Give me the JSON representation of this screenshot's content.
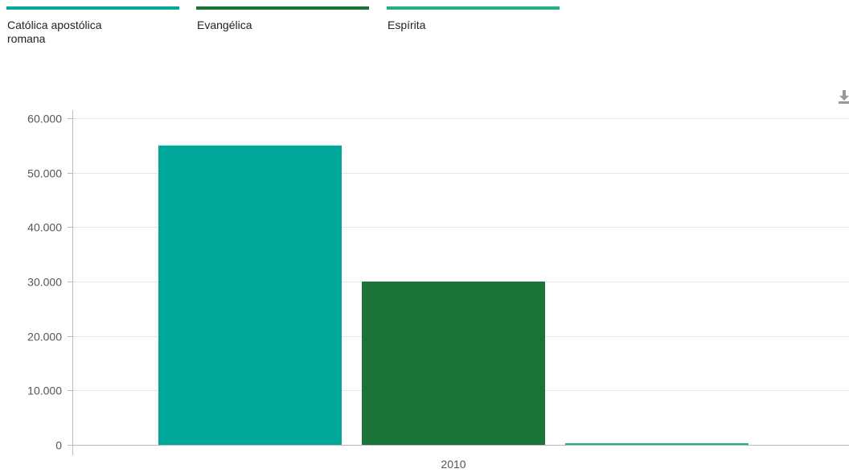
{
  "colors": {
    "catolica": "#00A89C",
    "evangelica": "#1A7438",
    "espirita": "#25B07A",
    "gridline": "#E6E6E6",
    "axis": "#BBBBBB",
    "download_icon": "#999999"
  },
  "toolbar": {
    "download_icon": "download-icon"
  },
  "chart_data": {
    "type": "bar",
    "title": "",
    "xlabel": "",
    "ylabel": "",
    "categories": [
      "2010"
    ],
    "series": [
      {
        "name": "Católica apostólica romana",
        "values": [
          55000
        ],
        "color": "#00A89C"
      },
      {
        "name": "Evangélica",
        "values": [
          30000
        ],
        "color": "#1A7438"
      },
      {
        "name": "Espírita",
        "values": [
          200
        ],
        "color": "#25B07A"
      }
    ],
    "ylim": [
      0,
      60000
    ],
    "yticks": [
      0,
      10000,
      20000,
      30000,
      40000,
      50000,
      60000
    ],
    "ytick_labels": [
      "0",
      "10.000",
      "20.000",
      "30.000",
      "40.000",
      "50.000",
      "60.000"
    ],
    "grid": true,
    "legend_position": "top-left"
  }
}
